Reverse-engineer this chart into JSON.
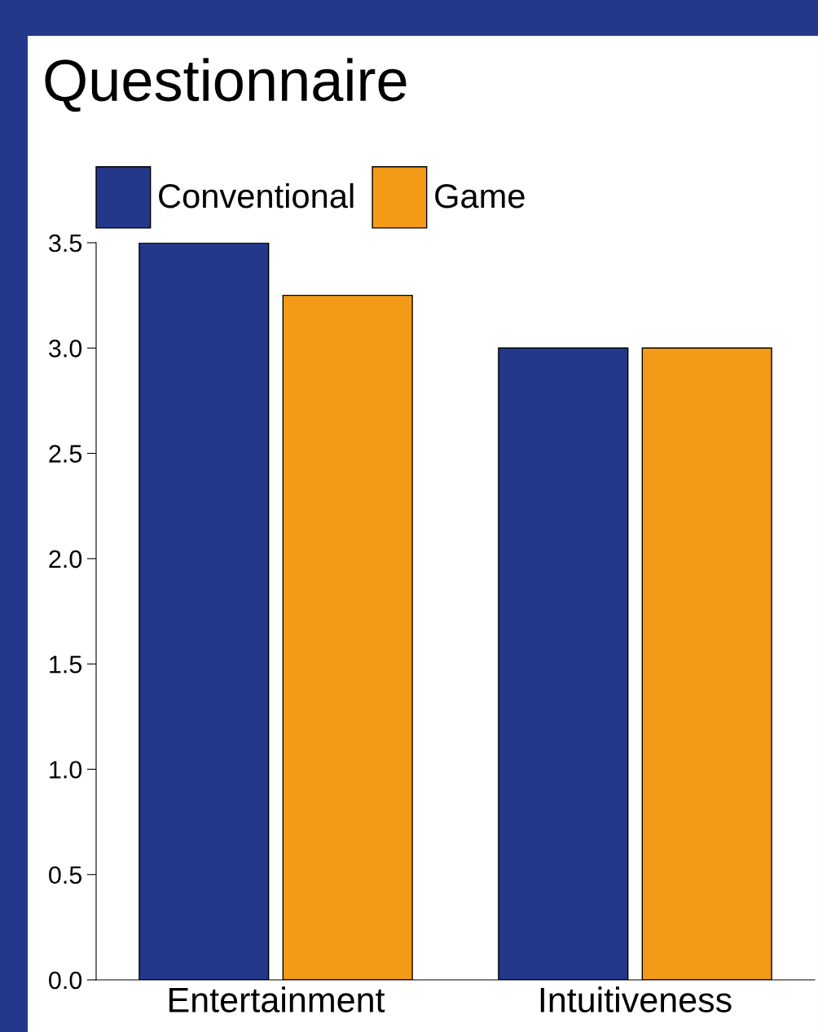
{
  "chart_data": {
    "type": "bar",
    "title": "Questionnaire",
    "categories": [
      "Entertainment",
      "Intuitiveness"
    ],
    "series": [
      {
        "name": "Conventional",
        "color": "#23388a",
        "values": [
          3.5,
          3.0
        ]
      },
      {
        "name": "Game",
        "color": "#f39a17",
        "values": [
          3.25,
          3.0
        ]
      }
    ],
    "ylim": [
      0,
      3.5
    ],
    "yticks": [
      {
        "value": 0,
        "label": "0.0"
      },
      {
        "value": 0.5,
        "label": "0.5"
      },
      {
        "value": 1,
        "label": "1.0"
      },
      {
        "value": 1.5,
        "label": "1.5"
      },
      {
        "value": 2,
        "label": "2.0"
      },
      {
        "value": 2.5,
        "label": "2.5"
      },
      {
        "value": 3,
        "label": "3.0"
      },
      {
        "value": 3.5,
        "label": "3.5"
      }
    ],
    "legend": "top left",
    "grid": false
  }
}
